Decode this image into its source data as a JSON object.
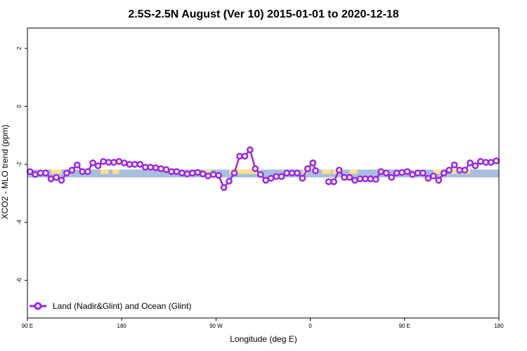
{
  "chart_data": {
    "type": "line",
    "title": "2.5S-2.5N August (Ver 10)   2015-01-01 to 2020-12-18",
    "xlabel": "Longitude (deg E)",
    "ylabel": "XCO2 - MLO trend (ppm)",
    "xlim": [
      90,
      450
    ],
    "ylim": [
      -7.3,
      2.7
    ],
    "x_ticks": [
      {
        "value": 90,
        "label": "90 E"
      },
      {
        "value": 162,
        "label": "180"
      },
      {
        "value": 234,
        "label": "90 W"
      },
      {
        "value": 306,
        "label": "0"
      },
      {
        "value": 378,
        "label": "90 E"
      },
      {
        "value": 450,
        "label": "180"
      }
    ],
    "y_ticks": [
      {
        "value": 2,
        "label": "2"
      },
      {
        "value": 0,
        "label": "0"
      },
      {
        "value": -2,
        "label": "-2"
      },
      {
        "value": -4,
        "label": "-4"
      },
      {
        "value": -6,
        "label": "-6"
      }
    ],
    "legend": {
      "position": "bottom-left"
    },
    "colors": {
      "series": "#9b27e0",
      "band_blue": "#a7bede",
      "band_yellow": "#fce08a"
    },
    "band": {
      "lower": -2.45,
      "upper": -2.18
    },
    "yellow_segments": [
      [
        98,
        102
      ],
      [
        108,
        116
      ],
      [
        146,
        152
      ],
      [
        155,
        160
      ],
      [
        225,
        230
      ],
      [
        244,
        268
      ],
      [
        300,
        304
      ],
      [
        315,
        322
      ],
      [
        323,
        328
      ],
      [
        336,
        342
      ],
      [
        384,
        388
      ],
      [
        400,
        406
      ],
      [
        414,
        418
      ],
      [
        422,
        428
      ]
    ],
    "series": [
      {
        "name": "Land (Nadir&Glint) and Ocean (Glint)",
        "segments": [
          {
            "x": [
              92,
              96,
              100,
              104,
              108,
              112,
              116,
              120,
              124,
              128,
              132,
              136,
              140,
              144,
              148,
              152,
              156,
              160,
              164,
              168,
              172,
              176,
              180,
              184,
              188,
              192,
              196,
              200,
              204,
              208,
              212,
              216,
              220,
              224,
              228,
              232,
              236,
              240,
              244,
              248,
              252,
              256,
              260,
              264,
              268,
              272,
              276,
              280,
              284,
              288,
              292,
              296,
              300,
              304,
              308,
              310
            ],
            "y": [
              -2.25,
              -2.35,
              -2.3,
              -2.3,
              -2.5,
              -2.45,
              -2.55,
              -2.3,
              -2.2,
              -2.02,
              -2.25,
              -2.25,
              -1.95,
              -2.05,
              -1.9,
              -1.93,
              -1.93,
              -1.9,
              -1.95,
              -2.0,
              -2.0,
              -2.0,
              -2.1,
              -2.1,
              -2.12,
              -2.15,
              -2.18,
              -2.25,
              -2.25,
              -2.3,
              -2.33,
              -2.3,
              -2.28,
              -2.33,
              -2.4,
              -2.35,
              -2.38,
              -2.8,
              -2.58,
              -2.3,
              -1.72,
              -1.72,
              -1.5,
              -2.15,
              -2.35,
              -2.55,
              -2.48,
              -2.42,
              -2.42,
              -2.3,
              -2.3,
              -2.3,
              -2.48,
              -2.15,
              -1.95,
              -2.22
            ]
          },
          {
            "x": [
              304,
              308,
              310
            ],
            "y": [
              -2.15,
              -1.95,
              -2.22
            ]
          },
          {
            "x": [
              320,
              324,
              328,
              332,
              336,
              340,
              344,
              348,
              352,
              356,
              360,
              364,
              368,
              372,
              376,
              380,
              384,
              388,
              392,
              396,
              400,
              404,
              408,
              412,
              416,
              420,
              424,
              428,
              432,
              436,
              440,
              444,
              448
            ],
            "y": [
              -2.6,
              -2.6,
              -2.2,
              -2.45,
              -2.45,
              -2.55,
              -2.5,
              -2.5,
              -2.5,
              -2.52,
              -2.25,
              -2.3,
              -2.45,
              -2.3,
              -2.28,
              -2.25,
              -2.35,
              -2.3,
              -2.3,
              -2.48,
              -2.4,
              -2.55,
              -2.3,
              -2.2,
              -2.02,
              -2.2,
              -2.2,
              -1.95,
              -2.05,
              -1.9,
              -1.93,
              -1.93,
              -1.88
            ]
          }
        ]
      }
    ]
  }
}
